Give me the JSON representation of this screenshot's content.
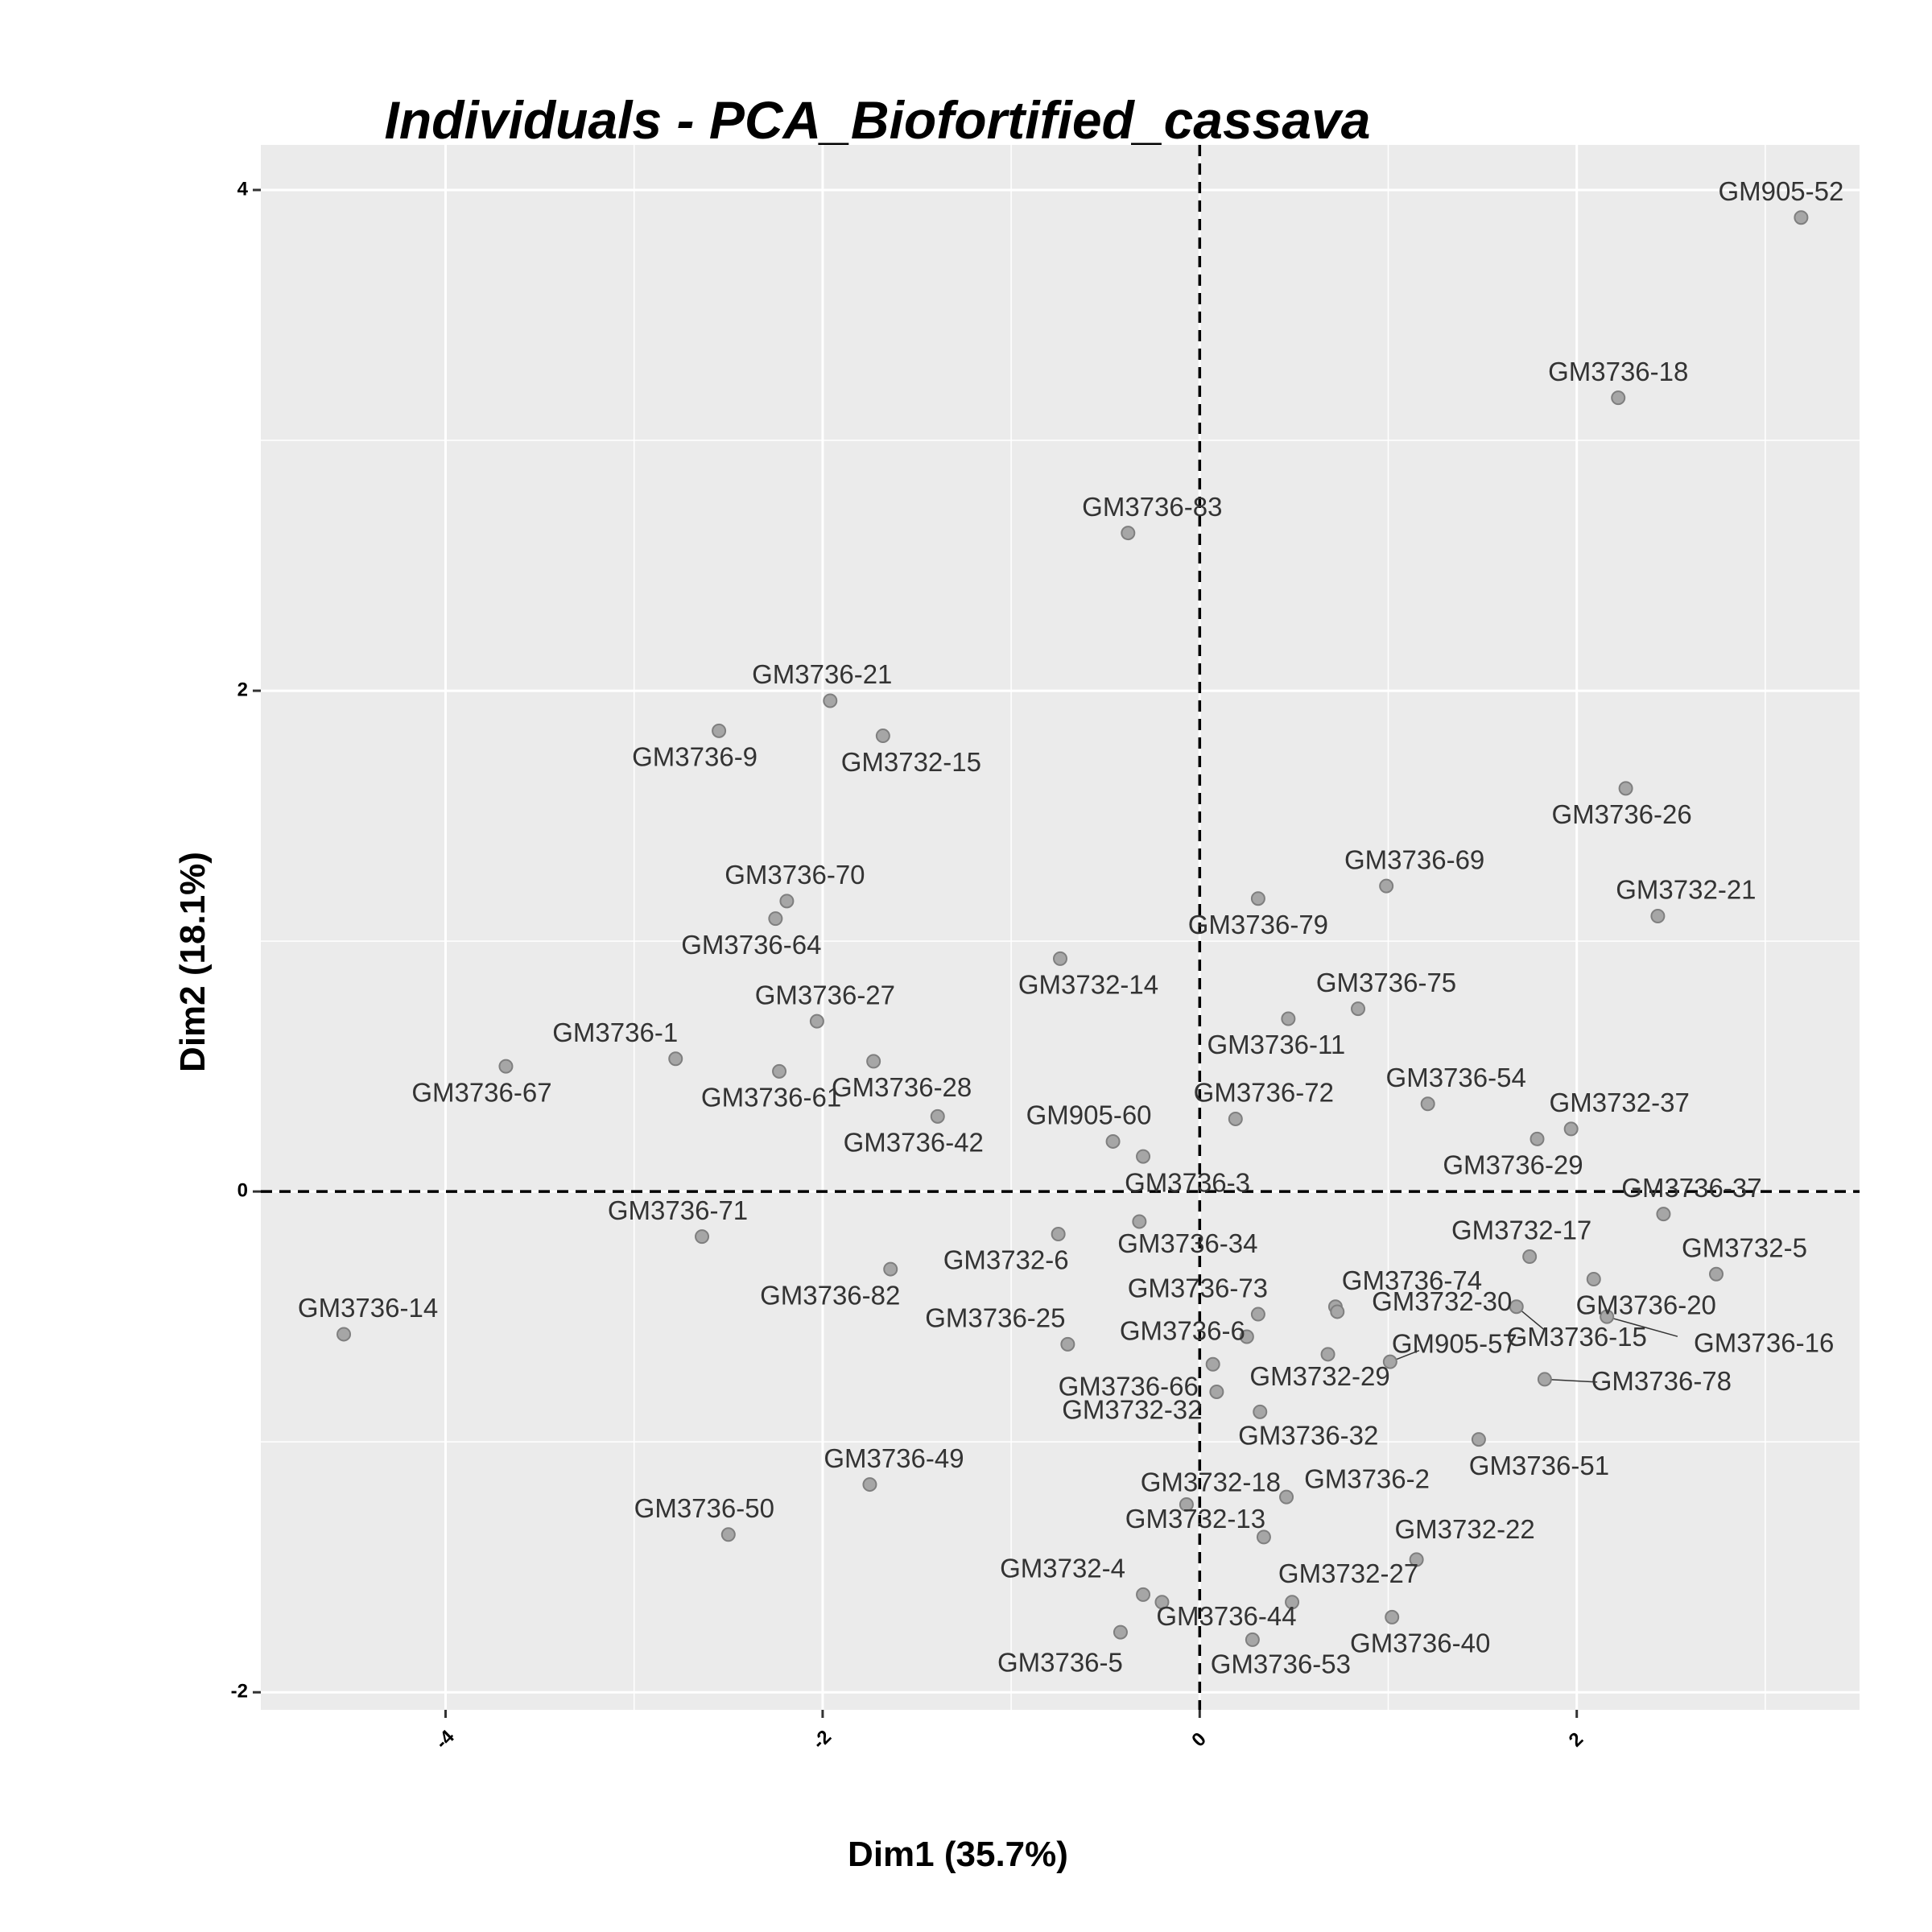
{
  "chart_data": {
    "type": "scatter",
    "title": "Individuals - PCA_Biofortified_cassava",
    "xlabel": "Dim1 (35.7%)",
    "ylabel": "Dim2 (18.1%)",
    "xlim": [
      -4.98,
      3.5
    ],
    "ylim": [
      -2.07,
      4.18
    ],
    "x_ticks": [
      -4,
      -2,
      0,
      2
    ],
    "x_tick_labels": [
      "-4",
      "-2",
      "0",
      "2"
    ],
    "y_ticks": [
      -2,
      0,
      2,
      4
    ],
    "y_tick_labels": [
      "-2",
      "0",
      "2",
      "4"
    ],
    "grid": true,
    "reference_lines": {
      "x": 0,
      "y": 0,
      "style": "dashed"
    },
    "colors": {
      "panel": "#ebebeb",
      "point": "#a6a6a6",
      "text": "#333333"
    },
    "points": [
      {
        "label": "GM905-52",
        "x": 3.19,
        "y": 3.89
      },
      {
        "label": "GM3736-18",
        "x": 2.22,
        "y": 3.17
      },
      {
        "label": "GM3736-83",
        "x": -0.38,
        "y": 2.63
      },
      {
        "label": "GM3736-21",
        "x": -1.96,
        "y": 1.96
      },
      {
        "label": "GM3736-9",
        "x": -2.55,
        "y": 1.84
      },
      {
        "label": "GM3732-15",
        "x": -1.68,
        "y": 1.82
      },
      {
        "label": "GM3736-26",
        "x": 2.26,
        "y": 1.61
      },
      {
        "label": "GM3736-69",
        "x": 0.99,
        "y": 1.22
      },
      {
        "label": "GM3736-79",
        "x": 0.31,
        "y": 1.17
      },
      {
        "label": "GM3732-21",
        "x": 2.43,
        "y": 1.1
      },
      {
        "label": "GM3736-70",
        "x": -2.19,
        "y": 1.16
      },
      {
        "label": "GM3736-64",
        "x": -2.25,
        "y": 1.09
      },
      {
        "label": "GM3732-14",
        "x": -0.74,
        "y": 0.93
      },
      {
        "label": "GM3736-75",
        "x": 0.84,
        "y": 0.73
      },
      {
        "label": "GM3736-11",
        "x": 0.47,
        "y": 0.69
      },
      {
        "label": "GM3736-27",
        "x": -2.03,
        "y": 0.68
      },
      {
        "label": "GM3736-1",
        "x": -2.78,
        "y": 0.53
      },
      {
        "label": "GM3736-28",
        "x": -1.73,
        "y": 0.52
      },
      {
        "label": "GM3736-67",
        "x": -3.68,
        "y": 0.5
      },
      {
        "label": "GM3736-61",
        "x": -2.23,
        "y": 0.48
      },
      {
        "label": "GM3736-54",
        "x": 1.21,
        "y": 0.35
      },
      {
        "label": "GM3736-42",
        "x": -1.39,
        "y": 0.3
      },
      {
        "label": "GM3736-72",
        "x": 0.19,
        "y": 0.29
      },
      {
        "label": "GM3732-37",
        "x": 1.97,
        "y": 0.25
      },
      {
        "label": "GM3736-29",
        "x": 1.79,
        "y": 0.21
      },
      {
        "label": "GM905-60",
        "x": -0.46,
        "y": 0.2
      },
      {
        "label": "GM3736-3",
        "x": -0.3,
        "y": 0.14
      },
      {
        "label": "GM3736-37",
        "x": 2.46,
        "y": -0.09
      },
      {
        "label": "GM3736-34",
        "x": -0.32,
        "y": -0.12
      },
      {
        "label": "GM3736-71",
        "x": -2.64,
        "y": -0.18
      },
      {
        "label": "GM3732-6",
        "x": -0.75,
        "y": -0.17
      },
      {
        "label": "GM3732-17",
        "x": 1.75,
        "y": -0.26
      },
      {
        "label": "GM3732-5",
        "x": 2.74,
        "y": -0.33
      },
      {
        "label": "GM3736-82",
        "x": -1.64,
        "y": -0.31
      },
      {
        "label": "GM3736-74",
        "x": 0.72,
        "y": -0.46
      },
      {
        "label": "GM3736-73",
        "x": 0.31,
        "y": -0.49
      },
      {
        "label": "GM3736-15",
        "x": 1.68,
        "y": -0.46
      },
      {
        "label": "GM3736-20",
        "x": 2.09,
        "y": -0.35
      },
      {
        "label": "GM3736-16",
        "x": 2.16,
        "y": -0.5
      },
      {
        "label": "GM3736-14",
        "x": -4.54,
        "y": -0.57
      },
      {
        "label": "GM3736-25",
        "x": -0.7,
        "y": -0.61
      },
      {
        "label": "GM3736-6",
        "x": 0.25,
        "y": -0.58
      },
      {
        "label": "GM905-57",
        "x": 1.01,
        "y": -0.68
      },
      {
        "label": "GM3736-66",
        "x": 0.07,
        "y": -0.69
      },
      {
        "label": "GM3732-29",
        "x": 0.68,
        "y": -0.65
      },
      {
        "label": "GM3736-78",
        "x": 1.83,
        "y": -0.75
      },
      {
        "label": "GM3732-30",
        "x": 0.73,
        "y": -0.48
      },
      {
        "label": "GM3732-32",
        "x": 0.09,
        "y": -0.8
      },
      {
        "label": "GM3736-32",
        "x": 0.32,
        "y": -0.88
      },
      {
        "label": "GM3736-51",
        "x": 1.48,
        "y": -0.99
      },
      {
        "label": "GM3736-49",
        "x": -1.75,
        "y": -1.17
      },
      {
        "label": "GM3736-2",
        "x": 0.46,
        "y": -1.22
      },
      {
        "label": "GM3732-18",
        "x": -0.07,
        "y": -1.25
      },
      {
        "label": "GM3736-50",
        "x": -2.5,
        "y": -1.37
      },
      {
        "label": "GM3732-13",
        "x": 0.34,
        "y": -1.38
      },
      {
        "label": "GM3732-22",
        "x": 1.15,
        "y": -1.47
      },
      {
        "label": "GM3732-27",
        "x": 0.49,
        "y": -1.64
      },
      {
        "label": "GM3732-4",
        "x": -0.3,
        "y": -1.61
      },
      {
        "label": "GM3736-44",
        "x": -0.2,
        "y": -1.64
      },
      {
        "label": "GM3736-40",
        "x": 1.02,
        "y": -1.7
      },
      {
        "label": "GM3736-5",
        "x": -0.42,
        "y": -1.76
      },
      {
        "label": "GM3736-53",
        "x": 0.28,
        "y": -1.79
      }
    ]
  }
}
